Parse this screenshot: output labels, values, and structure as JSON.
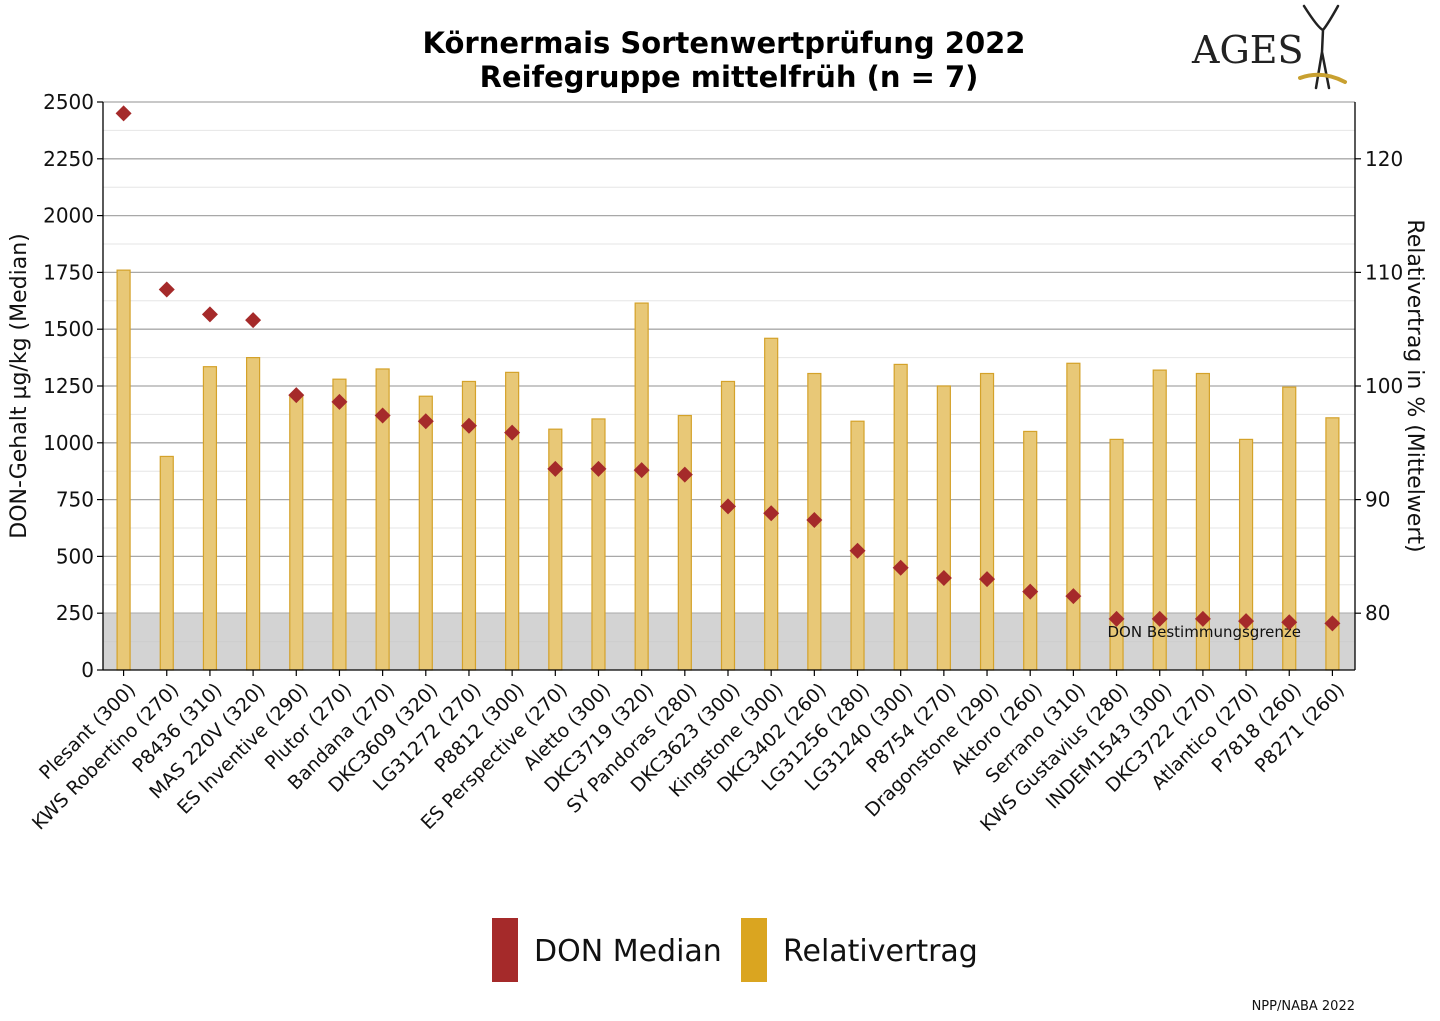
{
  "title_line1": "Körnermais Sortenwertprüfung 2022",
  "title_line2": "Reifegruppe mittelfrüh (n = 7)",
  "logo_text": "AGES",
  "footer": "NPP/NABA 2022",
  "chart_data": {
    "type": "bar",
    "categories": [
      "Plesant (300)",
      "KWS Robertino (270)",
      "P8436 (310)",
      "MAS 220V (320)",
      "ES Inventive (290)",
      "Plutor (270)",
      "Bandana (270)",
      "DKC3609 (320)",
      "LG31272 (270)",
      "P8812 (300)",
      "ES Perspective (270)",
      "Aletto (300)",
      "DKC3719 (320)",
      "SY Pandoras (280)",
      "DKC3623 (300)",
      "Kingstone (300)",
      "DKC3402 (260)",
      "LG31256 (280)",
      "LG31240 (300)",
      "P8754 (270)",
      "Dragonstone (290)",
      "Aktoro (260)",
      "Serrano (310)",
      "KWS Gustavius (280)",
      "INDEM1543 (300)",
      "DKC3722 (270)",
      "Atlantico (270)",
      "P7818 (260)",
      "P8271 (260)"
    ],
    "series": [
      {
        "name": "DON Median",
        "type": "scatter",
        "axis": "left",
        "color": "#a52a2a",
        "values": [
          2450,
          1675,
          1565,
          1540,
          1210,
          1180,
          1120,
          1095,
          1075,
          1045,
          885,
          885,
          880,
          860,
          720,
          690,
          660,
          525,
          450,
          405,
          400,
          345,
          325,
          225,
          225,
          225,
          215,
          210,
          205
        ]
      },
      {
        "name": "Relativertrag",
        "type": "bar",
        "axis": "right",
        "color": "#daa520",
        "values": [
          110.2,
          93.8,
          101.7,
          102.5,
          99.2,
          100.6,
          101.5,
          99.1,
          100.4,
          101.2,
          96.2,
          97.1,
          107.3,
          97.4,
          100.4,
          104.2,
          101.1,
          96.9,
          101.9,
          100.0,
          101.1,
          96.0,
          102.0,
          95.3,
          101.4,
          101.1,
          95.3,
          99.9,
          97.2
        ]
      }
    ],
    "ylabel": "DON-Gehalt µg/kg (Median)",
    "ylabel_right": "Relativertrag in % (Mittelwert)",
    "ylim": [
      0,
      2500
    ],
    "ylim_right": [
      75,
      125
    ],
    "yticks": [
      "0",
      "250",
      "500",
      "750",
      "1000",
      "1250",
      "1500",
      "1750",
      "2000",
      "2250",
      "2500"
    ],
    "yticks_right": [
      "80",
      "90",
      "100",
      "110",
      "120"
    ],
    "threshold": {
      "label": "DON Bestimmungsgrenze",
      "value": 250
    },
    "grid": true,
    "legend": "bottom",
    "legend_items": [
      "DON Median",
      "Relativertrag"
    ]
  }
}
